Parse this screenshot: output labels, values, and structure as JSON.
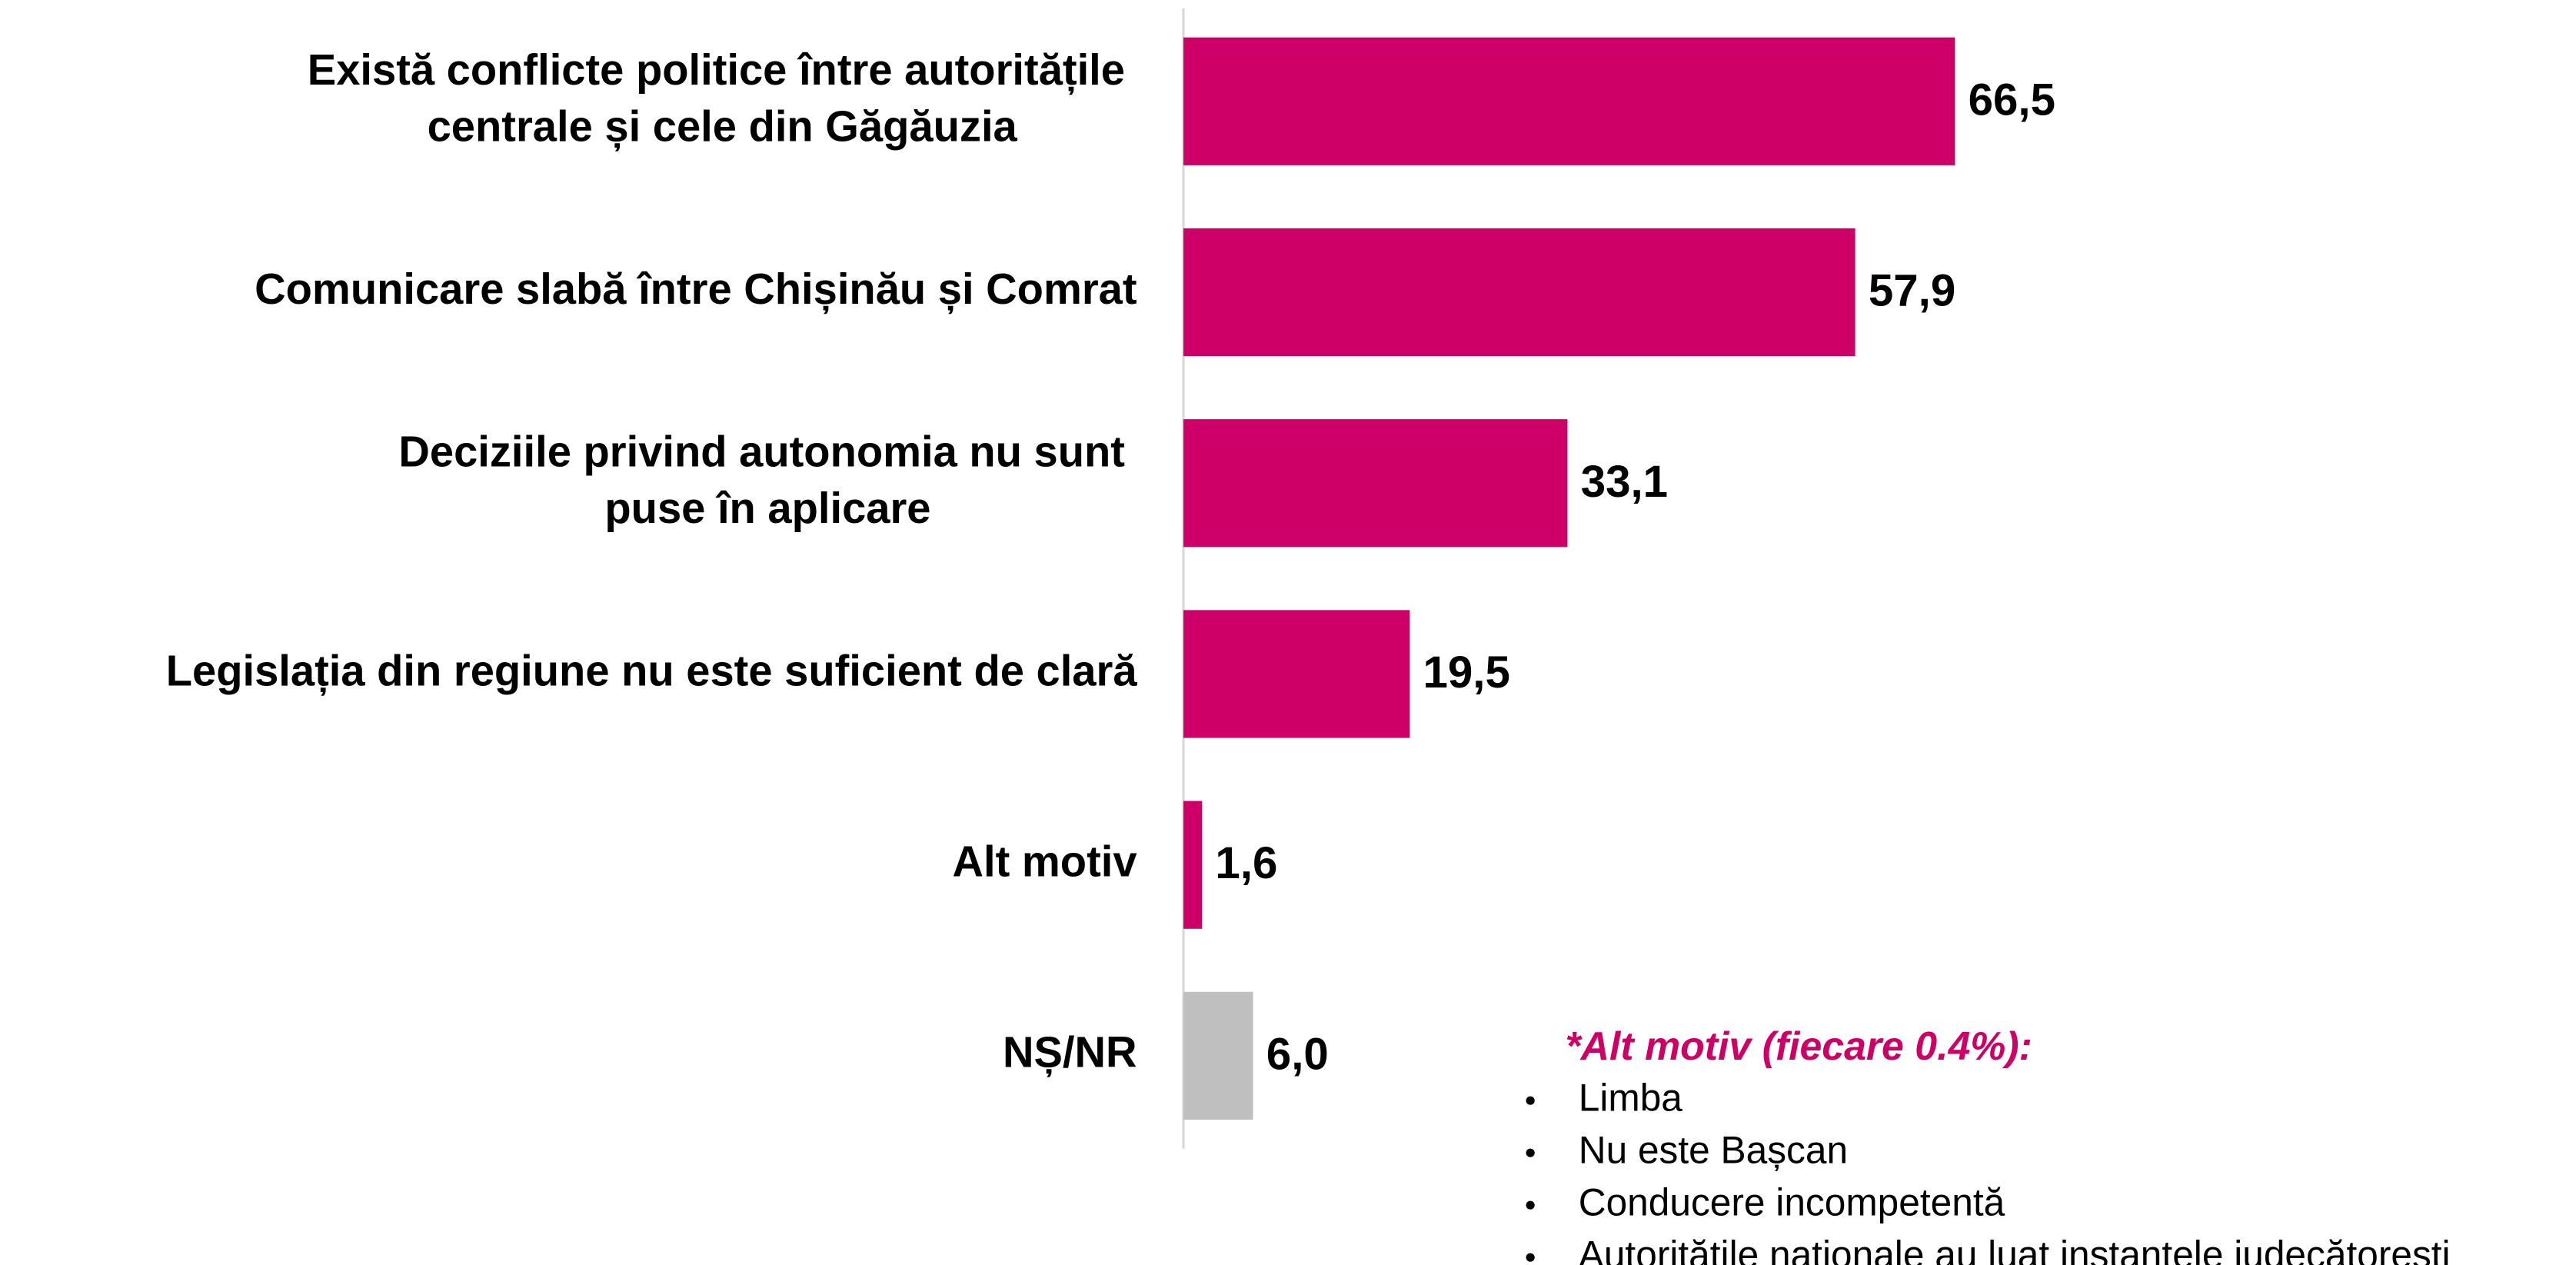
{
  "chart_data": {
    "type": "barh",
    "categories": [
      "Există conflicte politice între autoritățile centrale și cele din Găgăuzia",
      "Comunicare slabă între Chișinău și Comrat",
      "Deciziile privind autonomia nu sunt puse în aplicare",
      "Legislația din regiune nu este suficient de clară",
      "Alt motiv",
      "NȘ/NR"
    ],
    "values": [
      66.5,
      57.9,
      33.1,
      19.5,
      1.6,
      6.0
    ],
    "value_labels": [
      "66,5",
      "57,9",
      "33,1",
      "19,5",
      "1,6",
      "6,0"
    ],
    "colors": [
      "#cc0066",
      "#cc0066",
      "#cc0066",
      "#cc0066",
      "#cc0066",
      "#bfbfbf"
    ],
    "xlim": [
      0,
      100
    ],
    "annotation": {
      "title": "*Alt motiv (fiecare 0.4%):",
      "items": [
        "Limba",
        "Nu este Bașcan",
        "Conducere incompetentă",
        "Autoritățile naționale au luat instanțele judecătorești"
      ]
    }
  }
}
